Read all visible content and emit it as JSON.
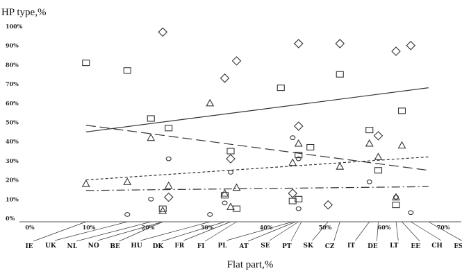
{
  "chart_data": {
    "type": "scatter",
    "ylabel": "HP type,%",
    "xlabel": "Flat part,%",
    "xlim": [
      0,
      70
    ],
    "ylim": [
      0,
      100
    ],
    "x_tick_labels": [
      "0%",
      "10%",
      "20%",
      "30%",
      "40%",
      "50%",
      "60%",
      "70%"
    ],
    "y_tick_labels": [
      "0%",
      "10%",
      "20%",
      "30%",
      "40%",
      "50%",
      "60%",
      "70%",
      "80%",
      "90%",
      "100%"
    ],
    "countries": [
      {
        "code": "IE",
        "x": 9.5
      },
      {
        "code": "UK",
        "x": 16.5
      },
      {
        "code": "NL",
        "x": 20.5
      },
      {
        "code": "NO",
        "x": 22.5
      },
      {
        "code": "BE",
        "x": 22.5
      },
      {
        "code": "HU",
        "x": 30.5
      },
      {
        "code": "DK",
        "x": 33
      },
      {
        "code": "FR",
        "x": 34
      },
      {
        "code": "FI",
        "x": 35
      },
      {
        "code": "PL",
        "x": 44.5
      },
      {
        "code": "AT",
        "x": 45
      },
      {
        "code": "SE",
        "x": 45.5
      },
      {
        "code": "PT",
        "x": 46
      },
      {
        "code": "SK",
        "x": 50.5
      },
      {
        "code": "CZ",
        "x": 52.5
      },
      {
        "code": "IT",
        "x": 57.5
      },
      {
        "code": "DE",
        "x": 59
      },
      {
        "code": "LT",
        "x": 62
      },
      {
        "code": "EE",
        "x": 63
      },
      {
        "code": "CH",
        "x": 64.5
      },
      {
        "code": "ES",
        "x": 67.5
      }
    ],
    "series": [
      {
        "marker": "square",
        "points": [
          [
            9.5,
            81
          ],
          [
            16.5,
            77
          ],
          [
            20.5,
            52
          ],
          [
            22.5,
            5
          ],
          [
            23.5,
            47
          ],
          [
            33,
            12
          ],
          [
            34,
            35
          ],
          [
            35,
            5
          ],
          [
            42.5,
            68
          ],
          [
            44.5,
            9
          ],
          [
            45.5,
            33
          ],
          [
            45.5,
            10
          ],
          [
            47.5,
            37
          ],
          [
            52.5,
            75
          ],
          [
            57.5,
            46
          ],
          [
            59,
            25
          ],
          [
            62,
            7
          ],
          [
            63,
            56
          ]
        ]
      },
      {
        "marker": "diamond",
        "points": [
          [
            22.5,
            97
          ],
          [
            23.5,
            11
          ],
          [
            33,
            73
          ],
          [
            34,
            31
          ],
          [
            35,
            82
          ],
          [
            44.5,
            13
          ],
          [
            45.5,
            48
          ],
          [
            45.5,
            91
          ],
          [
            50.5,
            7
          ],
          [
            52.5,
            91
          ],
          [
            59,
            43
          ],
          [
            62,
            87
          ],
          [
            64.5,
            90
          ]
        ]
      },
      {
        "marker": "triangle",
        "points": [
          [
            9.5,
            18
          ],
          [
            16.5,
            19
          ],
          [
            20.5,
            42
          ],
          [
            22.5,
            4
          ],
          [
            23.5,
            17
          ],
          [
            30.5,
            60
          ],
          [
            33,
            13
          ],
          [
            34,
            6
          ],
          [
            35,
            16
          ],
          [
            44.5,
            29
          ],
          [
            45.5,
            39
          ],
          [
            52.5,
            27
          ],
          [
            57.5,
            39
          ],
          [
            59,
            32
          ],
          [
            62,
            11
          ],
          [
            63,
            38
          ]
        ]
      },
      {
        "marker": "circle",
        "points": [
          [
            16.5,
            2
          ],
          [
            20.5,
            10
          ],
          [
            23.5,
            31
          ],
          [
            30.5,
            2
          ],
          [
            33,
            8
          ],
          [
            34,
            24
          ],
          [
            44.5,
            42
          ],
          [
            45.5,
            31
          ],
          [
            45.5,
            5
          ],
          [
            57.5,
            19
          ],
          [
            62,
            11
          ],
          [
            64.5,
            3
          ]
        ]
      }
    ],
    "trendlines": [
      {
        "style": "solid",
        "from": [
          9.5,
          45
        ],
        "to": [
          67.5,
          68
        ]
      },
      {
        "style": "long-dash",
        "from": [
          9.5,
          48.5
        ],
        "to": [
          67.5,
          25
        ]
      },
      {
        "style": "short-dash",
        "from": [
          9.5,
          20
        ],
        "to": [
          67.5,
          32
        ]
      },
      {
        "style": "dash-dot",
        "from": [
          9.5,
          14.5
        ],
        "to": [
          67.5,
          16.5
        ]
      }
    ]
  }
}
